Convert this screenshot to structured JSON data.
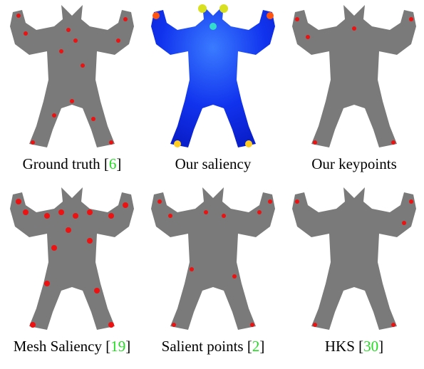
{
  "panels": [
    {
      "caption": "Ground truth",
      "citation": [
        "[",
        "6",
        "]"
      ]
    },
    {
      "caption": "Our saliency"
    },
    {
      "caption": "Our keypoints"
    },
    {
      "caption": "Mesh Saliency",
      "citation": [
        "[",
        "19",
        "]"
      ]
    },
    {
      "caption": "Salient points",
      "citation": [
        "[",
        "2",
        "]"
      ]
    },
    {
      "caption": "HKS",
      "citation": [
        "[",
        "30",
        "]"
      ]
    }
  ]
}
